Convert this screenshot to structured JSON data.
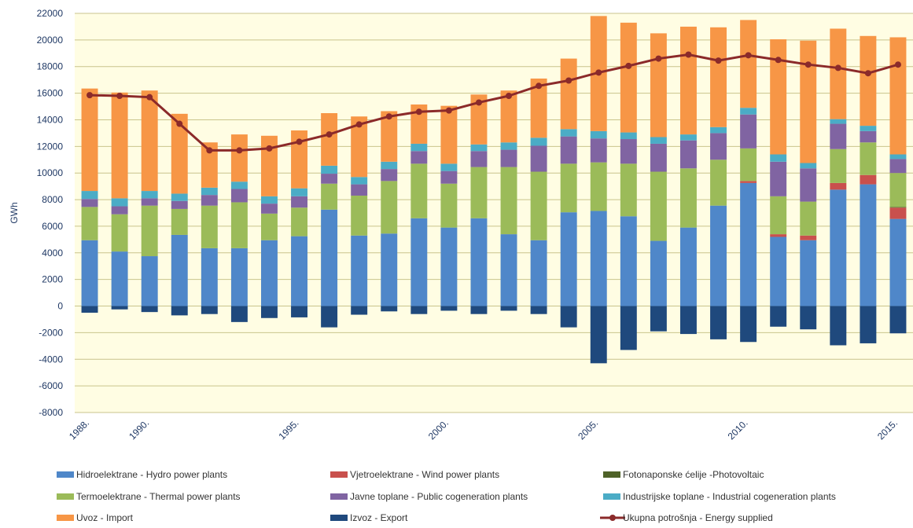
{
  "chart_data": {
    "type": "bar",
    "stacked": true,
    "y_label": "GWh",
    "categories": [
      "1988.",
      null,
      "1990.",
      null,
      null,
      null,
      null,
      "1995.",
      null,
      null,
      null,
      null,
      "2000.",
      null,
      null,
      null,
      null,
      "2005.",
      null,
      null,
      null,
      null,
      "2010.",
      null,
      null,
      null,
      null,
      "2015."
    ],
    "ylim": [
      -8000,
      22000
    ],
    "yticks": [
      -8000,
      -6000,
      -4000,
      -2000,
      0,
      2000,
      4000,
      6000,
      8000,
      10000,
      12000,
      14000,
      16000,
      18000,
      20000,
      22000
    ],
    "grid": true,
    "series": [
      {
        "name": "Hidroelektrane - Hydro power plants",
        "color": "#4f87c9",
        "values": [
          4950,
          4100,
          3750,
          5350,
          4350,
          4350,
          4950,
          5250,
          7250,
          5300,
          5450,
          6600,
          5900,
          6600,
          5400,
          4950,
          7050,
          7150,
          6750,
          4900,
          5900,
          7550,
          9250,
          5200,
          4950,
          8750,
          9150,
          6550
        ]
      },
      {
        "name": "Vjetroelektrane  - Wind power plants",
        "color": "#c9504d",
        "values": [
          0,
          0,
          0,
          0,
          0,
          0,
          0,
          0,
          0,
          0,
          0,
          0,
          0,
          0,
          0,
          0,
          0,
          0,
          0,
          0,
          0,
          0,
          150,
          200,
          350,
          500,
          700,
          850
        ]
      },
      {
        "name": "Fotonaponske ćelije  -Photovoltaic",
        "color": "#4f6228",
        "values": [
          0,
          0,
          0,
          0,
          0,
          0,
          0,
          0,
          0,
          0,
          0,
          0,
          0,
          0,
          0,
          0,
          0,
          0,
          0,
          0,
          0,
          0,
          0,
          0,
          0,
          0,
          0,
          50
        ]
      },
      {
        "name": "Termoelektrane  - Thermal power plants",
        "color": "#9bbb59",
        "values": [
          2500,
          2800,
          3800,
          1950,
          3200,
          3450,
          2000,
          2150,
          1950,
          3000,
          3950,
          4100,
          3300,
          3850,
          5050,
          5150,
          3650,
          3650,
          3950,
          5200,
          4450,
          3450,
          2450,
          2850,
          2550,
          2550,
          2450,
          2550
        ]
      },
      {
        "name": "Javne toplane - Public cogeneration plants",
        "color": "#8064a2",
        "values": [
          600,
          600,
          550,
          600,
          800,
          1000,
          750,
          850,
          750,
          850,
          900,
          950,
          950,
          1200,
          1300,
          1950,
          2050,
          1800,
          1850,
          2100,
          2100,
          2000,
          2550,
          2600,
          2500,
          1900,
          850,
          1050
        ]
      },
      {
        "name": "Industrijske toplane - Industrial cogeneration plants",
        "color": "#4bacc6",
        "values": [
          600,
          600,
          550,
          550,
          550,
          550,
          550,
          600,
          600,
          550,
          550,
          550,
          550,
          500,
          550,
          600,
          550,
          550,
          500,
          500,
          450,
          450,
          500,
          550,
          400,
          350,
          400,
          350
        ]
      },
      {
        "name": "Uvoz - Import",
        "color": "#f79646",
        "values": [
          7700,
          7950,
          7550,
          6000,
          3400,
          3550,
          4550,
          4350,
          3950,
          4550,
          3800,
          2950,
          4350,
          3750,
          3900,
          4450,
          5300,
          8650,
          8250,
          7800,
          8100,
          7500,
          6600,
          8650,
          9200,
          6800,
          6750,
          8800
        ]
      },
      {
        "name": "Izvoz - Export",
        "color": "#1f497d",
        "values": [
          -500,
          -250,
          -450,
          -700,
          -600,
          -1200,
          -900,
          -850,
          -1600,
          -650,
          -400,
          -600,
          -350,
          -600,
          -350,
          -600,
          -1600,
          -4300,
          -3300,
          -1900,
          -2100,
          -2500,
          -2700,
          -1550,
          -1750,
          -2950,
          -2800,
          -2050
        ]
      },
      {
        "name": "Ukupna potrošnja - Energy supplied",
        "color": "#8b2a2a",
        "type": "line",
        "values": [
          15850,
          15800,
          15700,
          13700,
          11700,
          11700,
          11850,
          12350,
          12900,
          13650,
          14250,
          14600,
          14700,
          15300,
          15800,
          16550,
          16950,
          17550,
          18050,
          18600,
          18900,
          18450,
          18850,
          18500,
          18150,
          17900,
          17500,
          18150
        ]
      }
    ]
  }
}
